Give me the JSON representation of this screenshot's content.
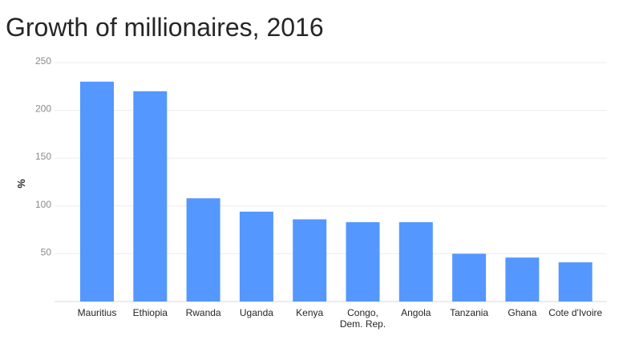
{
  "chart_data": {
    "type": "bar",
    "title": "Growth of millionaires, 2016",
    "ylabel": "%",
    "xlabel": "",
    "ylim": [
      0,
      250
    ],
    "yticks": [
      50,
      100,
      150,
      200,
      250
    ],
    "grid": true,
    "bar_color": "#5497ff",
    "categories": [
      [
        "Mauritius"
      ],
      [
        "Ethiopia"
      ],
      [
        "Rwanda"
      ],
      [
        "Uganda"
      ],
      [
        "Kenya"
      ],
      [
        "Congo,",
        "Dem. Rep."
      ],
      [
        "Angola"
      ],
      [
        "Tanzania"
      ],
      [
        "Ghana"
      ],
      [
        "Cote d'Ivoire"
      ]
    ],
    "values": [
      230,
      220,
      108,
      94,
      86,
      83,
      83,
      50,
      46,
      41
    ]
  }
}
